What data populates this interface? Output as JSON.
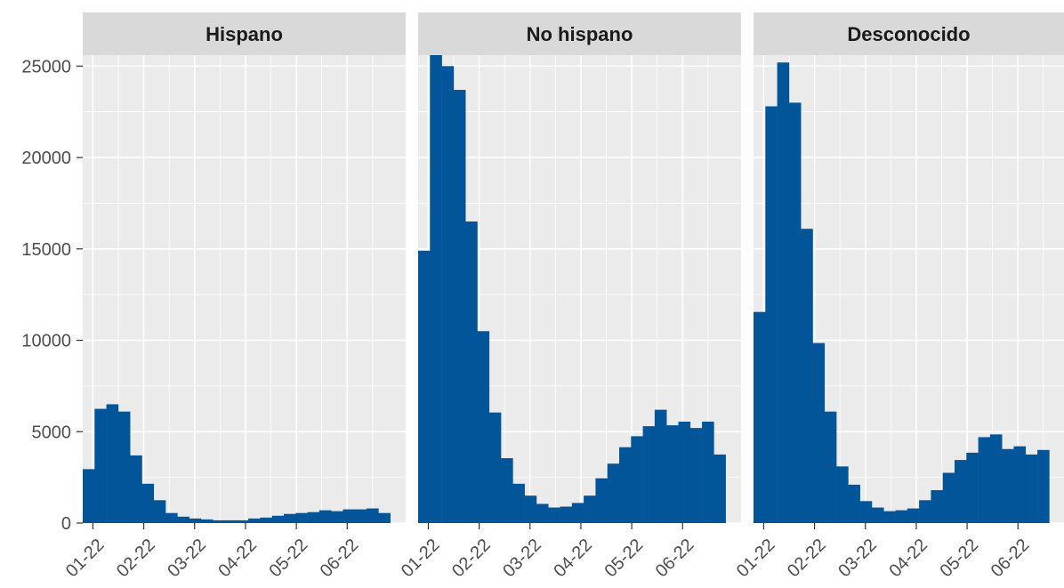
{
  "chart_data": {
    "type": "bar",
    "subtype": "faceted-histogram",
    "bar_color": "#03559a",
    "panel_background": "#ebebeb",
    "strip_background": "#d9d9d9",
    "grid_color": "#ffffff",
    "grid": true,
    "x_tick_labels": [
      "01-22",
      "02-22",
      "03-22",
      "04-22",
      "05-22",
      "06-22"
    ],
    "y_ticks": [
      0,
      5000,
      10000,
      15000,
      20000,
      25000
    ],
    "y_tick_labels": [
      "0",
      "5000",
      "10000",
      "15000",
      "20000",
      "25000"
    ],
    "ylim": [
      0,
      25600
    ],
    "x_range": [
      -0.2,
      6.15
    ],
    "bins_per_month": 4.3,
    "facets": [
      {
        "title": "Hispano",
        "values": [
          2950,
          6250,
          6500,
          6100,
          3700,
          2150,
          1250,
          550,
          350,
          250,
          200,
          150,
          150,
          150,
          250,
          300,
          400,
          500,
          550,
          600,
          700,
          650,
          750,
          750,
          800,
          550
        ]
      },
      {
        "title": "No hispano",
        "values": [
          14900,
          25600,
          25000,
          23700,
          16500,
          10500,
          6050,
          3550,
          2150,
          1500,
          1050,
          850,
          900,
          1100,
          1500,
          2450,
          3250,
          4150,
          4750,
          5300,
          6200,
          5350,
          5550,
          5200,
          5550,
          3750
        ]
      },
      {
        "title": "Desconocido",
        "values": [
          11550,
          22800,
          25200,
          23000,
          16100,
          9850,
          6100,
          3100,
          2100,
          1200,
          850,
          650,
          700,
          800,
          1250,
          1800,
          2750,
          3450,
          3850,
          4700,
          4850,
          4050,
          4200,
          3750,
          4000
        ]
      }
    ]
  }
}
